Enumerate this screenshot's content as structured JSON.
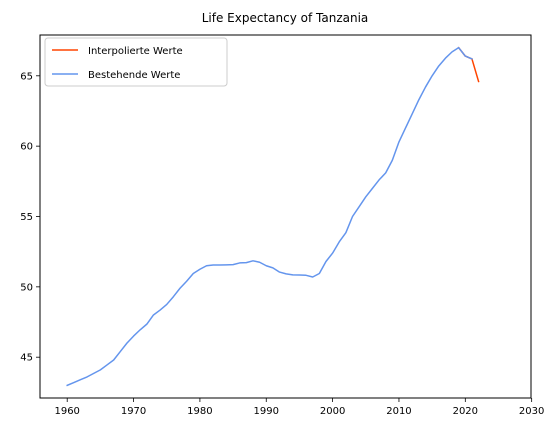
{
  "chart_data": {
    "type": "line",
    "title": "Life Expectancy of Tanzania",
    "xlabel": "",
    "ylabel": "",
    "xlim": [
      1955.9,
      2029.9
    ],
    "ylim": [
      42.1,
      67.9
    ],
    "xticks": [
      1960,
      1970,
      1980,
      1990,
      2000,
      2010,
      2020,
      2030
    ],
    "yticks": [
      45,
      50,
      55,
      60,
      65
    ],
    "grid": false,
    "legend_position": "top-left",
    "series": [
      {
        "name": "Interpolierte Werte",
        "color": "#ff4500",
        "x": [
          2019,
          2020,
          2021,
          2022
        ],
        "y": [
          67.0,
          66.4,
          66.2,
          64.6
        ]
      },
      {
        "name": "Bestehende Werte",
        "color": "#6495ed",
        "x": [
          1960,
          1961,
          1962,
          1963,
          1964,
          1965,
          1966,
          1967,
          1968,
          1969,
          1970,
          1971,
          1972,
          1973,
          1974,
          1975,
          1976,
          1977,
          1978,
          1979,
          1980,
          1981,
          1982,
          1983,
          1984,
          1985,
          1986,
          1987,
          1988,
          1989,
          1990,
          1991,
          1992,
          1993,
          1994,
          1995,
          1996,
          1997,
          1998,
          1999,
          2000,
          2001,
          2002,
          2003,
          2004,
          2005,
          2006,
          2007,
          2008,
          2009,
          2010,
          2011,
          2012,
          2013,
          2014,
          2015,
          2016,
          2017,
          2018,
          2019,
          2020,
          2021
        ],
        "y": [
          43.0,
          43.2,
          43.4,
          43.6,
          43.85,
          44.1,
          44.45,
          44.8,
          45.4,
          46.0,
          46.5,
          46.95,
          47.35,
          48.0,
          48.35,
          48.75,
          49.3,
          49.9,
          50.4,
          50.95,
          51.25,
          51.5,
          51.55,
          51.55,
          51.56,
          51.58,
          51.7,
          51.72,
          51.85,
          51.75,
          51.5,
          51.35,
          51.05,
          50.92,
          50.85,
          50.84,
          50.82,
          50.7,
          50.95,
          51.8,
          52.4,
          53.2,
          53.85,
          55.0,
          55.7,
          56.4,
          57.0,
          57.6,
          58.1,
          59.0,
          60.3,
          61.3,
          62.3,
          63.3,
          64.2,
          65.0,
          65.7,
          66.25,
          66.7,
          67.0,
          66.4,
          66.2
        ]
      }
    ]
  }
}
